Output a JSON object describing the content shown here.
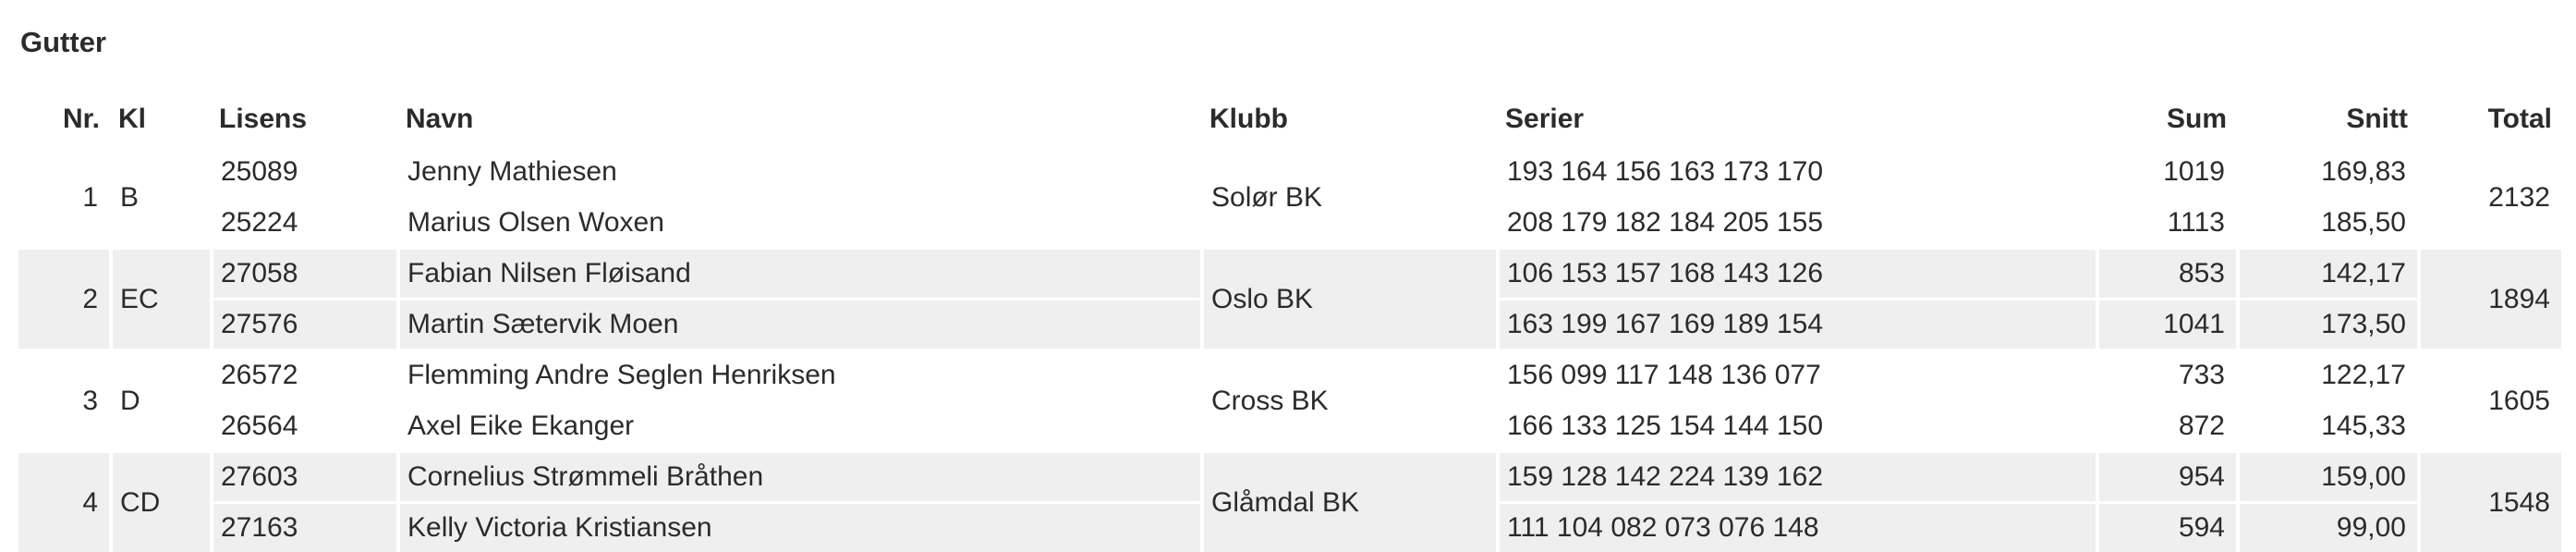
{
  "header": {
    "title": "Gutter"
  },
  "table": {
    "columns": [
      "Nr.",
      "Kl",
      "Lisens",
      "Navn",
      "Klubb",
      "Serier",
      "Sum",
      "Snitt",
      "Total"
    ],
    "teams": [
      {
        "nr": 1,
        "kl": "B",
        "club": "Solør BK",
        "total": 2132,
        "players": [
          {
            "license": "25089",
            "name": "Jenny Mathiesen",
            "series": "193 164 156 163 173 170",
            "sum": 1019,
            "avg": "169,83"
          },
          {
            "license": "25224",
            "name": "Marius Olsen Woxen",
            "series": "208 179 182 184 205 155",
            "sum": 1113,
            "avg": "185,50"
          }
        ]
      },
      {
        "nr": 2,
        "kl": "EC",
        "club": "Oslo BK",
        "total": 1894,
        "players": [
          {
            "license": "27058",
            "name": "Fabian Nilsen Fløisand",
            "series": "106 153 157 168 143 126",
            "sum": 853,
            "avg": "142,17"
          },
          {
            "license": "27576",
            "name": "Martin Sætervik Moen",
            "series": "163 199 167 169 189 154",
            "sum": 1041,
            "avg": "173,50"
          }
        ]
      },
      {
        "nr": 3,
        "kl": "D",
        "club": "Cross BK",
        "total": 1605,
        "players": [
          {
            "license": "26572",
            "name": "Flemming Andre Seglen Henriksen",
            "series": "156 099 117 148 136 077",
            "sum": 733,
            "avg": "122,17"
          },
          {
            "license": "26564",
            "name": "Axel Eike Ekanger",
            "series": "166 133 125 154 144 150",
            "sum": 872,
            "avg": "145,33"
          }
        ]
      },
      {
        "nr": 4,
        "kl": "CD",
        "club": "Glåmdal BK",
        "total": 1548,
        "players": [
          {
            "license": "27603",
            "name": "Cornelius Strømmeli Bråthen",
            "series": "159 128 142 224 139 162",
            "sum": 954,
            "avg": "159,00"
          },
          {
            "license": "27163",
            "name": "Kelly Victoria Kristiansen",
            "series": "111 104 082 073 076 148",
            "sum": 594,
            "avg": "99,00"
          }
        ]
      }
    ]
  }
}
